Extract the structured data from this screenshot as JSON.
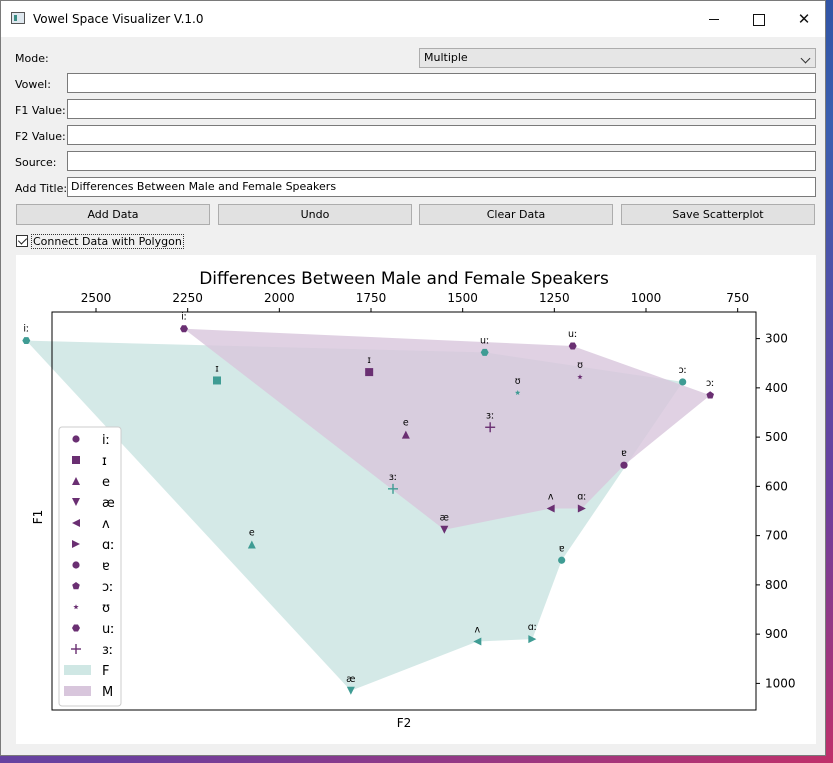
{
  "window": {
    "title": "Vowel Space Visualizer V.1.0",
    "controls": {
      "minimize": "–",
      "maximize": "☐",
      "close": "✕"
    }
  },
  "form": {
    "mode_label": "Mode:",
    "mode_value": "Multiple",
    "vowel_label": "Vowel:",
    "vowel_value": "",
    "f1_label": "F1 Value:",
    "f1_value": "",
    "f2_label": "F2 Value:",
    "f2_value": "",
    "source_label": "Source:",
    "source_value": "",
    "title_label": "Add Title:",
    "title_value": "Differences Between Male and Female Speakers"
  },
  "buttons": {
    "add": "Add Data",
    "undo": "Undo",
    "clear": "Clear Data",
    "save": "Save Scatterplot"
  },
  "polygon_checkbox": {
    "label": "Connect Data with Polygon",
    "checked": true
  },
  "chart_data": {
    "type": "scatter",
    "title": "Differences Between Male and Female Speakers",
    "xlabel": "F2",
    "ylabel": "F1",
    "x_ticks": [
      2500,
      2250,
      2000,
      1750,
      1500,
      1250,
      1000,
      750
    ],
    "y_ticks": [
      300,
      400,
      500,
      600,
      700,
      800,
      900,
      1000
    ],
    "xlim": [
      2620,
      700
    ],
    "ylim": [
      1054,
      246
    ],
    "x_inverted": true,
    "y_inverted": true,
    "x_axis_position": "top",
    "y_axis_position": "right",
    "grid": false,
    "legend_position": "lower-left",
    "colors": {
      "F": "#3f9c94",
      "M": "#6a2f72"
    },
    "series": [
      {
        "name": "F",
        "color": "#3f9c94",
        "fill": "#cfe7e4",
        "points": [
          {
            "vowel": "iː",
            "x": 2690,
            "y": 304,
            "marker": "hex"
          },
          {
            "vowel": "ɪ",
            "x": 2170,
            "y": 385,
            "marker": "square"
          },
          {
            "vowel": "e",
            "x": 2075,
            "y": 718,
            "marker": "triangle-up"
          },
          {
            "vowel": "æ",
            "x": 1805,
            "y": 1015,
            "marker": "triangle-down"
          },
          {
            "vowel": "ʌ",
            "x": 1460,
            "y": 915,
            "marker": "triangle-left"
          },
          {
            "vowel": "ɑː",
            "x": 1310,
            "y": 910,
            "marker": "triangle-right"
          },
          {
            "vowel": "ɐ",
            "x": 1230,
            "y": 750,
            "marker": "circle"
          },
          {
            "vowel": "ɔː",
            "x": 900,
            "y": 388,
            "marker": "circle"
          },
          {
            "vowel": "ʊ",
            "x": 1350,
            "y": 410,
            "marker": "star"
          },
          {
            "vowel": "uː",
            "x": 1440,
            "y": 328,
            "marker": "hex"
          },
          {
            "vowel": "ɜː",
            "x": 1690,
            "y": 605,
            "marker": "plus"
          }
        ]
      },
      {
        "name": "M",
        "color": "#6a2f72",
        "fill": "#d8c6dc",
        "points": [
          {
            "vowel": "iː",
            "x": 2260,
            "y": 280,
            "marker": "hex"
          },
          {
            "vowel": "ɪ",
            "x": 1755,
            "y": 368,
            "marker": "square"
          },
          {
            "vowel": "e",
            "x": 1655,
            "y": 495,
            "marker": "triangle-up"
          },
          {
            "vowel": "æ",
            "x": 1550,
            "y": 688,
            "marker": "triangle-down"
          },
          {
            "vowel": "ʌ",
            "x": 1260,
            "y": 645,
            "marker": "triangle-left"
          },
          {
            "vowel": "ɑː",
            "x": 1175,
            "y": 645,
            "marker": "triangle-right"
          },
          {
            "vowel": "ɐ",
            "x": 1060,
            "y": 557,
            "marker": "circle"
          },
          {
            "vowel": "ɔː",
            "x": 825,
            "y": 415,
            "marker": "pentagon"
          },
          {
            "vowel": "ʊ",
            "x": 1180,
            "y": 378,
            "marker": "star"
          },
          {
            "vowel": "uː",
            "x": 1200,
            "y": 315,
            "marker": "hex"
          },
          {
            "vowel": "ɜː",
            "x": 1425,
            "y": 480,
            "marker": "plus"
          }
        ]
      }
    ],
    "polygons": {
      "F": [
        "iː",
        "uː",
        "ɔː",
        "ɐ",
        "ɑː",
        "ʌ",
        "æ"
      ],
      "M": [
        "iː",
        "uː",
        "ɔː",
        "ɐ",
        "ɑː",
        "ʌ",
        "æ"
      ]
    },
    "legend": [
      {
        "label": "iː",
        "marker": "circle"
      },
      {
        "label": "ɪ",
        "marker": "square"
      },
      {
        "label": "e",
        "marker": "triangle-up"
      },
      {
        "label": "æ",
        "marker": "triangle-down"
      },
      {
        "label": "ʌ",
        "marker": "triangle-left"
      },
      {
        "label": "ɑː",
        "marker": "triangle-right"
      },
      {
        "label": "ɐ",
        "marker": "circle"
      },
      {
        "label": "ɔː",
        "marker": "pentagon"
      },
      {
        "label": "ʊ",
        "marker": "star"
      },
      {
        "label": "uː",
        "marker": "hex"
      },
      {
        "label": "ɜː",
        "marker": "plus"
      },
      {
        "label": "F",
        "marker": "patch-F"
      },
      {
        "label": "M",
        "marker": "patch-M"
      }
    ]
  }
}
